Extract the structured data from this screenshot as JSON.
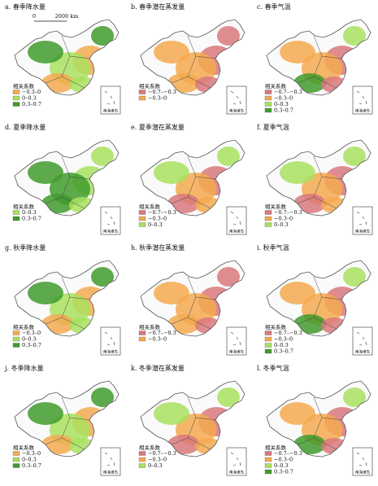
{
  "legend_title": "相关系数",
  "inset_label": "南海诸岛",
  "scale_bar": {
    "start": "0",
    "end": "2000 km"
  },
  "colors": {
    "neg_strong": "#d9787c",
    "neg_weak": "#f5a94f",
    "pos_weak": "#a9e05f",
    "pos_strong": "#3f9b2c"
  },
  "panels": [
    {
      "title": "a. 春季降水量",
      "legend": [
        {
          "label": "−0.3–0",
          "color": "#f5a94f"
        },
        {
          "label": "0–0.3",
          "color": "#a9e05f"
        },
        {
          "label": "0.3–0.7",
          "color": "#3f9b2c"
        }
      ]
    },
    {
      "title": "b. 春季潜在蒸发量",
      "legend": [
        {
          "label": "−0.7–−0.3",
          "color": "#d9787c"
        },
        {
          "label": "−0.3–0",
          "color": "#f5a94f"
        }
      ]
    },
    {
      "title": "c. 春季气温",
      "legend": [
        {
          "label": "−0.7–−0.3",
          "color": "#d9787c"
        },
        {
          "label": "−0.3–0",
          "color": "#f5a94f"
        },
        {
          "label": "0–0.3",
          "color": "#a9e05f"
        },
        {
          "label": "0.3–0.7",
          "color": "#3f9b2c"
        }
      ]
    },
    {
      "title": "d. 夏季降水量",
      "legend": [
        {
          "label": "0–0.3",
          "color": "#a9e05f"
        },
        {
          "label": "0.3–0.7",
          "color": "#3f9b2c"
        }
      ]
    },
    {
      "title": "e. 夏季潜在蒸发量",
      "legend": [
        {
          "label": "−0.7–−0.3",
          "color": "#d9787c"
        },
        {
          "label": "−0.3–0",
          "color": "#f5a94f"
        },
        {
          "label": "0–0.3",
          "color": "#a9e05f"
        }
      ]
    },
    {
      "title": "f. 夏季气温",
      "legend": [
        {
          "label": "−0.7–−0.3",
          "color": "#d9787c"
        },
        {
          "label": "−0.3–0",
          "color": "#f5a94f"
        },
        {
          "label": "0–0.3",
          "color": "#a9e05f"
        }
      ]
    },
    {
      "title": "g. 秋季降水量",
      "legend": [
        {
          "label": "−0.3–0",
          "color": "#f5a94f"
        },
        {
          "label": "0–0.3",
          "color": "#a9e05f"
        },
        {
          "label": "0.3–0.7",
          "color": "#3f9b2c"
        }
      ]
    },
    {
      "title": "h. 秋季潜在蒸发量",
      "legend": [
        {
          "label": "−0.7–−0.3",
          "color": "#d9787c"
        },
        {
          "label": "−0.3–0",
          "color": "#f5a94f"
        }
      ]
    },
    {
      "title": "i. 秋季气温",
      "legend": [
        {
          "label": "−0.7–−0.3",
          "color": "#d9787c"
        },
        {
          "label": "−0.3–0",
          "color": "#f5a94f"
        },
        {
          "label": "0–0.3",
          "color": "#a9e05f"
        },
        {
          "label": "0.3–0.7",
          "color": "#3f9b2c"
        }
      ]
    },
    {
      "title": "j. 冬季降水量",
      "legend": [
        {
          "label": "−0.3–0",
          "color": "#f5a94f"
        },
        {
          "label": "0–0.3",
          "color": "#a9e05f"
        },
        {
          "label": "0.3–0.7",
          "color": "#3f9b2c"
        }
      ]
    },
    {
      "title": "k. 冬季潜在蒸发量",
      "legend": [
        {
          "label": "−0.7–−0.3",
          "color": "#d9787c"
        },
        {
          "label": "−0.3–0",
          "color": "#f5a94f"
        },
        {
          "label": "0–0.3",
          "color": "#a9e05f"
        }
      ]
    },
    {
      "title": "l. 冬季气温",
      "legend": [
        {
          "label": "−0.7–−0.3",
          "color": "#d9787c"
        },
        {
          "label": "−0.3–0",
          "color": "#f5a94f"
        },
        {
          "label": "0–0.3",
          "color": "#a9e05f"
        },
        {
          "label": "0.3–0.7",
          "color": "#3f9b2c"
        }
      ]
    }
  ]
}
